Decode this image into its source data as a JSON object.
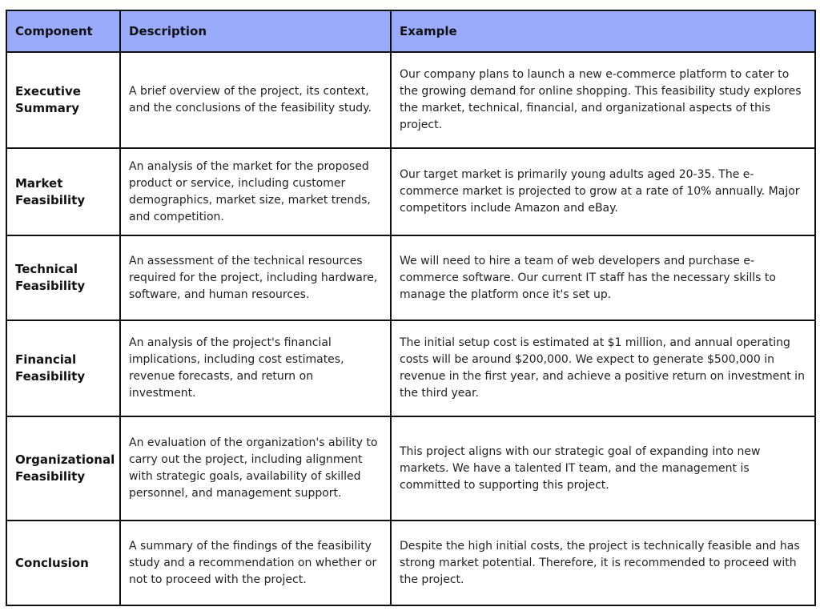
{
  "table": {
    "header": [
      "Component",
      "Description",
      "Example"
    ],
    "rows": [
      [
        "Executive Summary",
        "A brief overview of the project, its context, and the conclusions of the feasibility study.",
        "Our company plans to launch a new e-commerce platform to cater to the growing demand for online shopping. This feasibility study explores the market, technical, financial, and organizational aspects of this project."
      ],
      [
        "Market Feasibility",
        "An analysis of the market for the proposed product or service, including customer demographics, market size, market trends, and competition.",
        "Our target market is primarily young adults aged 20-35. The e-commerce market is projected to grow at a rate of 10% annually. Major competitors include Amazon and eBay."
      ],
      [
        "Technical Feasibility",
        "An assessment of the technical resources required for the project, including hardware, software, and human resources.",
        "We will need to hire a team of web developers and purchase e-commerce software. Our current IT staff has the necessary skills to manage the platform once it's set up."
      ],
      [
        "Financial Feasibility",
        "An analysis of the project's financial implications, including cost estimates, revenue forecasts, and return on investment.",
        "The initial setup cost is estimated at $1 million, and annual operating costs will be around $200,000. We expect to generate $500,000 in revenue in the first year, and achieve a positive return on investment in the third year."
      ],
      [
        "Organizational Feasibility",
        "An evaluation of the organization's ability to carry out the project, including alignment with strategic goals, availability of skilled personnel, and management support.",
        "This project aligns with our strategic goal of expanding into new markets. We have a talented IT team, and the management is committed to supporting this project."
      ],
      [
        "Conclusion",
        "A summary of the findings of the feasibility study and a recommendation on whether or not to proceed with the project.",
        "Despite the high initial costs, the project is technically feasible and has strong market potential. Therefore, it is recommended to proceed with the project."
      ]
    ]
  }
}
